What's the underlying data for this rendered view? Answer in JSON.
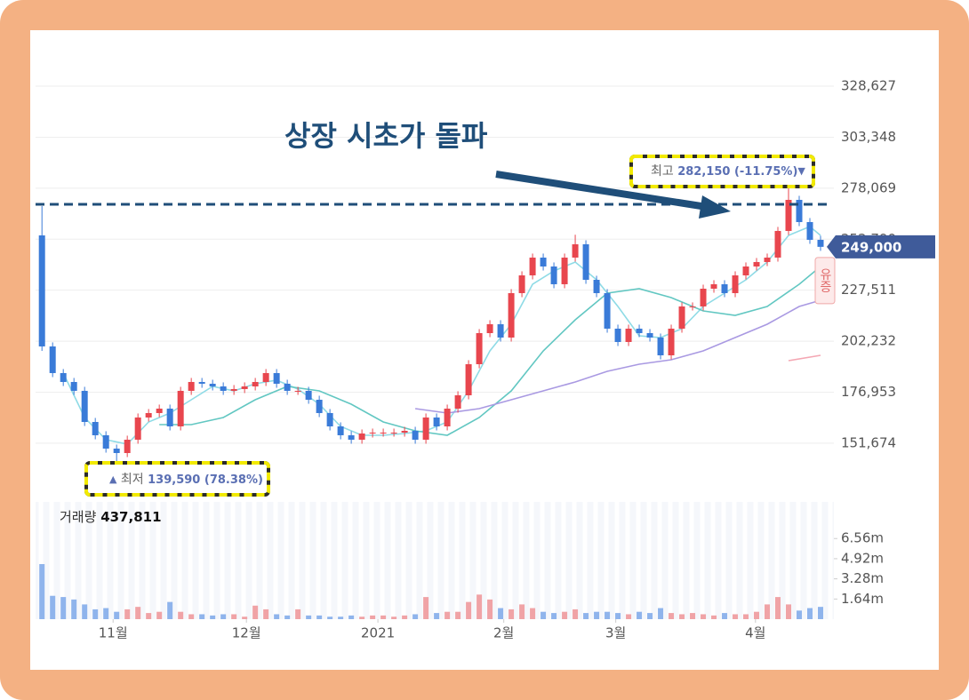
{
  "chart_data": {
    "type": "candlestick",
    "annotation": "상장 시초가 돌파",
    "reference_line": 270090,
    "up_color": "#e8464e",
    "down_color": "#3a7bd8",
    "ylim": [
      124760,
      340540
    ],
    "yticks": [
      {
        "value": 151674,
        "label": "151,674"
      },
      {
        "value": 176953,
        "label": "176,953"
      },
      {
        "value": 202232,
        "label": "202,232"
      },
      {
        "value": 227511,
        "label": "227,511"
      },
      {
        "value": 252790,
        "label": "252,790"
      },
      {
        "value": 278069,
        "label": "278,069"
      },
      {
        "value": 303348,
        "label": "303,348"
      },
      {
        "value": 328627,
        "label": "328,627"
      }
    ],
    "xlim": [
      -0.6,
      74.25
    ],
    "xticks": [
      {
        "value": 6.67,
        "label": "11월"
      },
      {
        "value": 19.17,
        "label": "12월"
      },
      {
        "value": 31.5,
        "label": "2021"
      },
      {
        "value": 43.3,
        "label": "2월"
      },
      {
        "value": 53.8,
        "label": "3월"
      },
      {
        "value": 66.9,
        "label": "4월"
      }
    ],
    "open": [
      254680,
      199630,
      186420,
      182010,
      177610,
      162190,
      155590,
      148980,
      146780,
      153390,
      164400,
      166600,
      168800,
      159990,
      177610,
      182010,
      181130,
      179810,
      177610,
      178490,
      179810,
      182010,
      186420,
      181130,
      177610,
      177610,
      173200,
      166600,
      159990,
      155590,
      153390,
      156470,
      156910,
      156910,
      156910,
      157790,
      153390,
      164400,
      159990,
      168800,
      175410,
      190820,
      206230,
      210640,
      204030,
      226050,
      234860,
      243670,
      239260,
      230460,
      243670,
      250270,
      232660,
      226050,
      208440,
      201830,
      208440,
      206230,
      204030,
      195220,
      208440,
      219450,
      219450,
      228250,
      230460,
      226050,
      234860,
      239260,
      241470,
      243670,
      256880,
      272290,
      261280,
      252480
    ],
    "high": [
      269210,
      201630,
      188420,
      184010,
      179610,
      164190,
      157590,
      150980,
      155390,
      166400,
      168600,
      170800,
      170800,
      179610,
      184010,
      184010,
      183130,
      181810,
      180490,
      181810,
      184010,
      188420,
      188420,
      183130,
      179610,
      179610,
      175200,
      168600,
      161990,
      157590,
      158470,
      158910,
      158910,
      158910,
      159790,
      159790,
      166400,
      166400,
      170800,
      177410,
      192820,
      208230,
      212640,
      212640,
      228050,
      236860,
      245670,
      245670,
      241260,
      245670,
      255000,
      252270,
      234660,
      228050,
      210440,
      210440,
      210440,
      208230,
      206030,
      210440,
      221450,
      221450,
      230250,
      232460,
      232460,
      236860,
      241260,
      243470,
      245670,
      258880,
      282150,
      274290,
      263280,
      254480
    ],
    "low": [
      197430,
      184420,
      180010,
      175610,
      160190,
      153590,
      146980,
      139590,
      144780,
      151390,
      162400,
      164600,
      157990,
      157990,
      175610,
      179130,
      177810,
      175610,
      175610,
      176490,
      177810,
      180010,
      179130,
      175610,
      175610,
      171200,
      164600,
      157990,
      153590,
      151390,
      151390,
      154470,
      154910,
      154910,
      154910,
      151390,
      151390,
      157990,
      157990,
      166800,
      173410,
      188820,
      204230,
      202030,
      202030,
      224050,
      232860,
      237260,
      228460,
      228460,
      241670,
      230660,
      224050,
      206440,
      199830,
      199830,
      204230,
      202030,
      193220,
      193220,
      206440,
      217450,
      217450,
      226250,
      224050,
      224050,
      232860,
      237260,
      239470,
      241670,
      254880,
      259280,
      250480,
      247000
    ],
    "close": [
      199630,
      186420,
      182010,
      177610,
      162190,
      155590,
      148980,
      146780,
      153390,
      164400,
      166600,
      168800,
      159990,
      177610,
      182010,
      181130,
      179810,
      177610,
      178490,
      179810,
      182010,
      186420,
      181130,
      177610,
      177610,
      173200,
      166600,
      159990,
      155590,
      153390,
      156470,
      156910,
      156910,
      156910,
      157790,
      153390,
      164400,
      159990,
      168800,
      175410,
      190820,
      206230,
      210640,
      204030,
      226050,
      234860,
      243670,
      239260,
      230460,
      243670,
      250270,
      232660,
      226050,
      208440,
      201830,
      208440,
      206230,
      204030,
      195220,
      208440,
      219450,
      219450,
      228250,
      230460,
      226050,
      234860,
      239260,
      241470,
      243670,
      256880,
      272290,
      261280,
      252480,
      249000
    ],
    "moving_averages": [
      {
        "color": "#8fdbe6",
        "x": [
          2,
          4,
          6,
          8,
          10,
          12,
          14,
          16,
          18,
          20,
          22,
          24,
          26,
          28,
          30,
          32,
          34,
          36,
          38,
          40,
          42,
          44,
          46,
          48,
          50,
          52,
          54,
          56,
          58,
          60,
          62,
          64,
          66,
          68,
          70,
          72,
          73
        ],
        "values": [
          186420,
          164400,
          153390,
          151180,
          162190,
          166600,
          173200,
          179810,
          177610,
          181130,
          182890,
          178490,
          171000,
          159990,
          155590,
          155590,
          156470,
          157790,
          162190,
          177610,
          197430,
          210640,
          230460,
          237060,
          241470,
          232660,
          219450,
          204910,
          204030,
          208440,
          219450,
          226050,
          232660,
          241470,
          254680,
          259080,
          254680
        ]
      },
      {
        "color": "#62c7c2",
        "x": [
          11,
          14,
          17,
          20,
          23,
          26,
          29,
          32,
          35,
          38,
          41,
          44,
          47,
          50,
          53,
          56,
          59,
          62,
          65,
          68,
          71,
          73
        ],
        "values": [
          160870,
          160870,
          164400,
          173200,
          179810,
          177610,
          171000,
          162190,
          157790,
          155590,
          164400,
          177610,
          197430,
          212840,
          226050,
          228250,
          223850,
          217240,
          215040,
          219450,
          230460,
          239260
        ]
      },
      {
        "color": "#a999e2",
        "x": [
          35,
          38,
          41,
          44,
          47,
          50,
          53,
          56,
          59,
          62,
          65,
          68,
          71,
          73
        ],
        "values": [
          168800,
          166600,
          168800,
          173200,
          177610,
          182010,
          187300,
          190820,
          193020,
          197430,
          204030,
          210640,
          219450,
          222530
        ]
      },
      {
        "color": "#f4a7b3",
        "x": [
          70,
          73
        ],
        "values": [
          192580,
          195220
        ]
      }
    ],
    "high_marker": {
      "label": "최고",
      "text": "282,150 (-11.75%)",
      "arrow": "▼"
    },
    "low_marker": {
      "arrow": "▲",
      "label": "최저",
      "text": "139,590 (78.38%)"
    },
    "last_price": {
      "value": 249000,
      "label": "249,000"
    },
    "event_tag": "유증",
    "volume": {
      "title": "거래량",
      "current": "437,811",
      "ylim": [
        0,
        9540000
      ],
      "yticks": [
        {
          "value": 1640000,
          "label": "1.64m"
        },
        {
          "value": 3280000,
          "label": "3.28m"
        },
        {
          "value": 4920000,
          "label": "4.92m"
        },
        {
          "value": 6560000,
          "label": "6.56m"
        }
      ],
      "values": [
        4480000,
        1900000,
        1800000,
        1600000,
        1200000,
        800000,
        900000,
        600000,
        800000,
        1000000,
        500000,
        600000,
        1400000,
        600000,
        400000,
        400000,
        300000,
        400000,
        400000,
        200000,
        1100000,
        800000,
        400000,
        300000,
        800000,
        300000,
        300000,
        200000,
        200000,
        300000,
        200000,
        300000,
        300000,
        200000,
        300000,
        400000,
        1800000,
        500000,
        600000,
        600000,
        1400000,
        2000000,
        1600000,
        900000,
        800000,
        1200000,
        900000,
        600000,
        500000,
        600000,
        800000,
        500000,
        600000,
        600000,
        500000,
        400000,
        600000,
        500000,
        900000,
        500000,
        400000,
        500000,
        400000,
        300000,
        500000,
        400000,
        400000,
        600000,
        1200000,
        1800000,
        1200000,
        700000,
        900000,
        1000000
      ]
    }
  }
}
